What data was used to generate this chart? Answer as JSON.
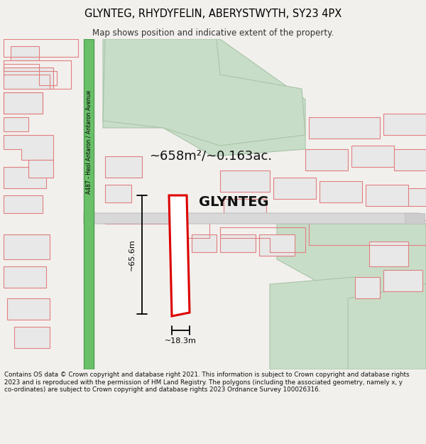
{
  "title": "GLYNTEG, RHYDYFELIN, ABERYSTWYTH, SY23 4PX",
  "subtitle": "Map shows position and indicative extent of the property.",
  "area_label": "~658m²/~0.163ac.",
  "property_label": "GLYNTEG",
  "dim_width": "~18.3m",
  "dim_height": "~65.6m",
  "road_label": "A487 - Heol Antaron / Antaron Avenue",
  "footer": "Contains OS data © Crown copyright and database right 2021. This information is subject to Crown copyright and database rights 2023 and is reproduced with the permission of HM Land Registry. The polygons (including the associated geometry, namely x, y co-ordinates) are subject to Crown copyright and database rights 2023 Ordnance Survey 100026316.",
  "bg_color": "#f2f0ed",
  "map_bg": "#ffffff",
  "road_green": "#6abf69",
  "road_green_edge": "#50a050",
  "building_fill": "#e8e8e8",
  "building_stroke": "#e08080",
  "field_fill": "#c8ddc8",
  "field_stroke": "#a8c4a8",
  "property_fill": "#ffffff",
  "property_stroke": "#dd0000",
  "road_gray_fill": "#d8d8d8",
  "road_gray_stroke": "#c0c0c0"
}
